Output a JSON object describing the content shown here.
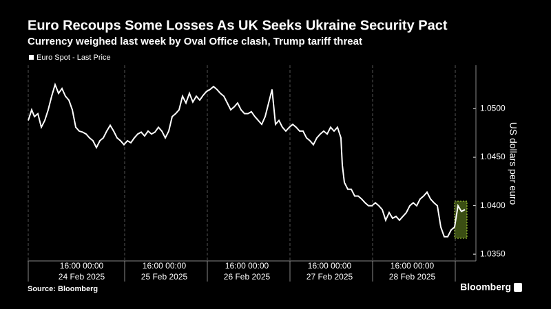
{
  "chart_data": {
    "type": "line",
    "title": "Euro Recoups Some Losses As UK Seeks Ukraine Security Pact",
    "subtitle": "Currency weighed last week by Oval Office clash, Trump tariff threat",
    "y_label": "US dollars per euro",
    "source": "Source: Bloomberg",
    "brand": "Bloomberg",
    "color": "#ffffff",
    "grid": true,
    "ylim": [
      1.0343,
      1.0545
    ],
    "yticks": [
      {
        "value": 1.05,
        "label": "1.0500"
      },
      {
        "value": 1.045,
        "label": "1.0450"
      },
      {
        "value": 1.04,
        "label": "1.0400"
      },
      {
        "value": 1.035,
        "label": "1.0350"
      }
    ],
    "xlim": [
      0,
      130
    ],
    "xgrid": [
      0,
      28,
      52,
      76,
      100,
      124
    ],
    "xticks": [
      {
        "value": 15.5,
        "label": "16:00 00:00"
      },
      {
        "value": 39.5,
        "label": "16:00 00:00"
      },
      {
        "value": 63.5,
        "label": "16:00 00:00"
      },
      {
        "value": 87.5,
        "label": "16:00 00:00"
      },
      {
        "value": 111.5,
        "label": "16:00 00:00"
      }
    ],
    "xtick_dates": [
      "24 Feb 2025",
      "25 Feb 2025",
      "26 Feb 2025",
      "27 Feb 2025",
      "28 Feb 2025"
    ],
    "series": [
      {
        "name": "Euro Spot - Last Price",
        "color": "#ffffff",
        "x": [
          0,
          1,
          1.8,
          2.8,
          3.8,
          4.8,
          5.8,
          6.8,
          7.8,
          8.8,
          9.8,
          10.8,
          11.8,
          12.8,
          13.8,
          14.8,
          15.8,
          16.8,
          17.8,
          18.8,
          19.8,
          20.8,
          21.8,
          22.8,
          23.8,
          24.8,
          25.8,
          26.8,
          27.8,
          28.8,
          29.8,
          30.8,
          31.8,
          32.8,
          33.8,
          34.8,
          35.8,
          36.8,
          37.8,
          38.8,
          39.8,
          40.8,
          41.8,
          42.8,
          43.8,
          44.8,
          45.8,
          46.8,
          47.8,
          48.8,
          49.8,
          50.8,
          51.8,
          52.8,
          53.8,
          54.8,
          55.8,
          56.8,
          57.8,
          58.8,
          59.8,
          60.8,
          61.8,
          62.8,
          63.8,
          64.8,
          65.8,
          66.8,
          67.8,
          68.8,
          69.8,
          70.8,
          71.8,
          72.8,
          73.8,
          74.8,
          75.8,
          76.8,
          77.8,
          78.8,
          79.8,
          80.8,
          81.8,
          82.8,
          83.8,
          84.8,
          85.8,
          86.8,
          87.8,
          88.8,
          89.8,
          90.8,
          91.2,
          91.8,
          92.8,
          93.8,
          94.8,
          95.8,
          96.8,
          97.8,
          98.8,
          99.8,
          100.8,
          101.8,
          102.8,
          103.8,
          104.8,
          105.8,
          106.8,
          107.8,
          108.8,
          109.8,
          110.8,
          111.8,
          112.8,
          113.8,
          114.8,
          115.8,
          116.8,
          117.8,
          118.8,
          119.8,
          120.8,
          121.8,
          122.8,
          123.8,
          124.8,
          125.8,
          126.8
        ],
        "values": [
          1.0488,
          1.0499,
          1.0492,
          1.0495,
          1.0481,
          1.0488,
          1.0499,
          1.0513,
          1.0525,
          1.0516,
          1.0521,
          1.0513,
          1.0509,
          1.0499,
          1.0481,
          1.0477,
          1.0476,
          1.0474,
          1.047,
          1.0467,
          1.046,
          1.0467,
          1.047,
          1.0477,
          1.0483,
          1.0477,
          1.047,
          1.0467,
          1.0463,
          1.0467,
          1.0465,
          1.047,
          1.0474,
          1.0476,
          1.0472,
          1.0477,
          1.0474,
          1.0476,
          1.0481,
          1.0477,
          1.047,
          1.0477,
          1.0492,
          1.0495,
          1.0499,
          1.0513,
          1.0506,
          1.0516,
          1.0507,
          1.0513,
          1.0509,
          1.0514,
          1.0518,
          1.052,
          1.0523,
          1.052,
          1.0516,
          1.0513,
          1.0506,
          1.0499,
          1.0502,
          1.0506,
          1.0499,
          1.0495,
          1.0495,
          1.0497,
          1.0492,
          1.0488,
          1.0484,
          1.0492,
          1.0506,
          1.052,
          1.0484,
          1.0488,
          1.0481,
          1.0477,
          1.0481,
          1.0484,
          1.0481,
          1.0477,
          1.0477,
          1.047,
          1.0467,
          1.0463,
          1.047,
          1.0474,
          1.0477,
          1.0474,
          1.0481,
          1.0477,
          1.0481,
          1.047,
          1.0442,
          1.0424,
          1.0417,
          1.0417,
          1.041,
          1.041,
          1.0407,
          1.0403,
          1.04,
          1.04,
          1.0403,
          1.04,
          1.0396,
          1.0385,
          1.0393,
          1.0387,
          1.0389,
          1.0385,
          1.0389,
          1.0393,
          1.04,
          1.0403,
          1.04,
          1.0407,
          1.041,
          1.0414,
          1.0407,
          1.0403,
          1.04,
          1.0378,
          1.0368,
          1.0368,
          1.0375,
          1.0378,
          1.04,
          1.0394,
          1.0396
        ]
      }
    ]
  }
}
